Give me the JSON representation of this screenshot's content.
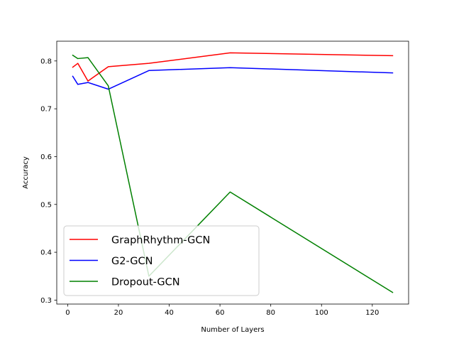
{
  "chart_data": {
    "type": "line",
    "title": "",
    "xlabel": "Number of Layers",
    "ylabel": "Accuracy",
    "xlim": [
      -4.3,
      134.3
    ],
    "ylim": [
      0.2917,
      0.8413
    ],
    "xticks": [
      0,
      20,
      40,
      60,
      80,
      100,
      120
    ],
    "yticks": [
      0.3,
      0.4,
      0.5,
      0.6,
      0.7,
      0.8
    ],
    "xtick_labels": [
      "0",
      "20",
      "40",
      "60",
      "80",
      "100",
      "120"
    ],
    "ytick_labels": [
      "0.3",
      "0.4",
      "0.5",
      "0.6",
      "0.7",
      "0.8"
    ],
    "grid": false,
    "legend_position": "lower-left",
    "series": [
      {
        "name": "GraphRhythm-GCN",
        "color": "#ff0000",
        "x": [
          2,
          4,
          8,
          16,
          32,
          64,
          128
        ],
        "y": [
          0.787,
          0.795,
          0.758,
          0.788,
          0.795,
          0.817,
          0.811
        ]
      },
      {
        "name": "G2-GCN",
        "color": "#0000ff",
        "x": [
          2,
          4,
          8,
          16,
          32,
          64,
          128
        ],
        "y": [
          0.768,
          0.751,
          0.755,
          0.741,
          0.78,
          0.786,
          0.775
        ]
      },
      {
        "name": "Dropout-GCN",
        "color": "#008000",
        "x": [
          2,
          4,
          8,
          16,
          32,
          64,
          128
        ],
        "y": [
          0.812,
          0.805,
          0.807,
          0.748,
          0.35,
          0.526,
          0.316
        ]
      }
    ]
  }
}
